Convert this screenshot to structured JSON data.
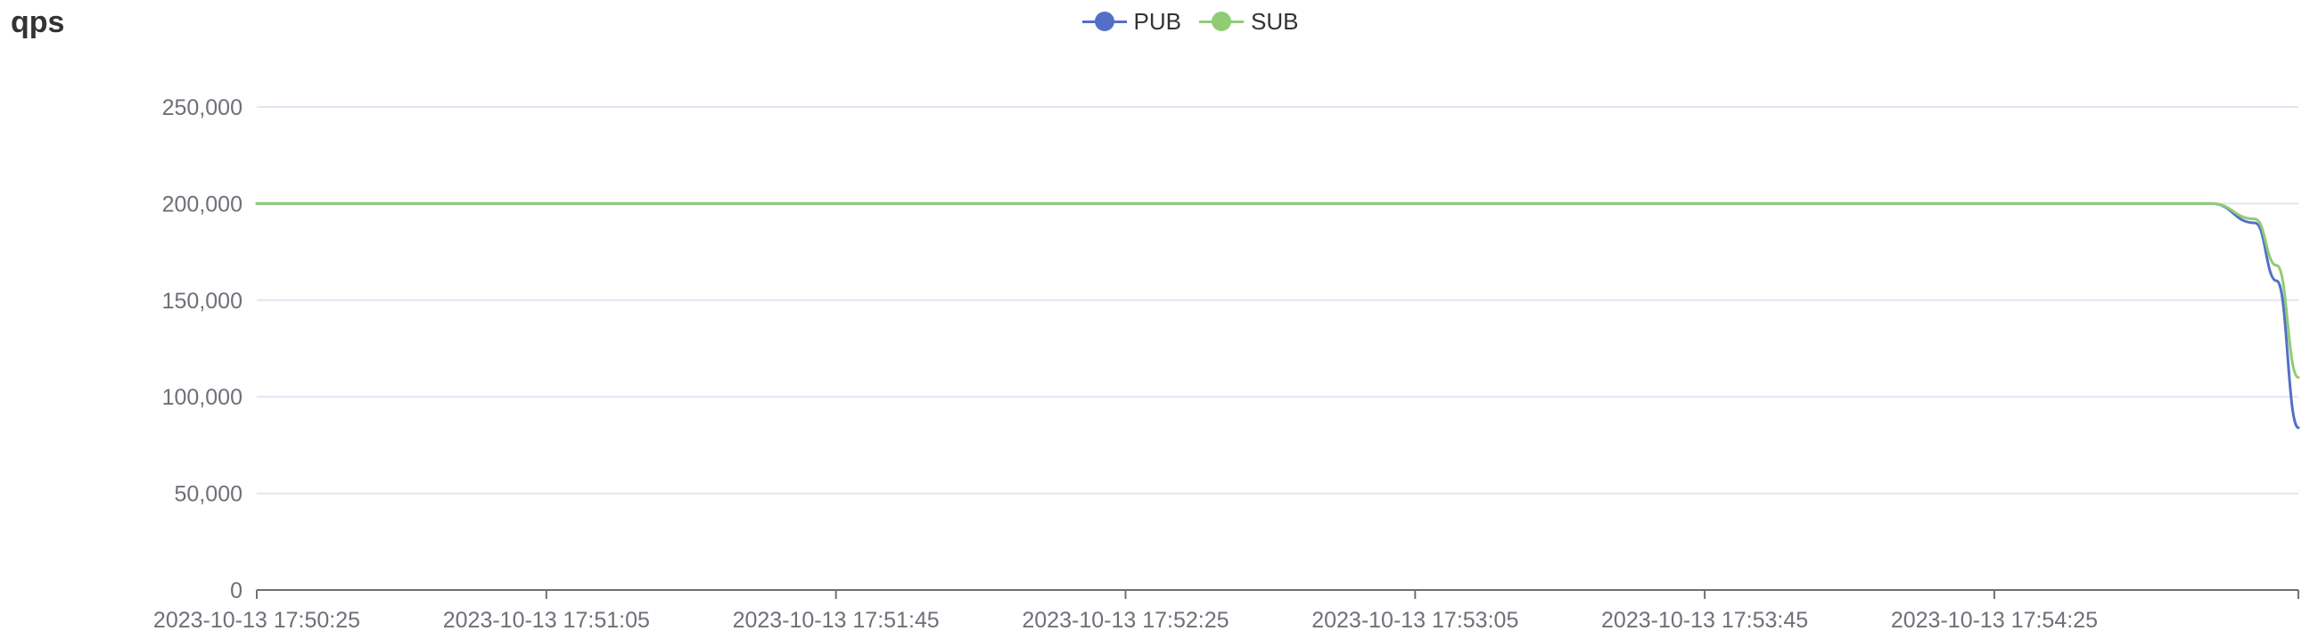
{
  "chart_data": {
    "type": "line",
    "title": "qps",
    "xlabel": "",
    "ylabel": "",
    "ylim": [
      0,
      250000
    ],
    "yticks": [
      0,
      50000,
      100000,
      150000,
      200000,
      250000
    ],
    "ytick_labels": [
      "0",
      "50,000",
      "100,000",
      "150,000",
      "200,000",
      "250,000"
    ],
    "xlim": [
      "2023-10-13 17:50:25",
      "2023-10-13 17:55:07"
    ],
    "xtick_labels": [
      "2023-10-13 17:50:25",
      "2023-10-13 17:51:05",
      "2023-10-13 17:51:45",
      "2023-10-13 17:52:25",
      "2023-10-13 17:53:05",
      "2023-10-13 17:53:45",
      "2023-10-13 17:54:25"
    ],
    "grid": true,
    "legend_position": "top-center",
    "series": [
      {
        "name": "PUB",
        "color": "#5470c6",
        "points": [
          [
            "2023-10-13 17:50:25",
            200000
          ],
          [
            "2023-10-13 17:51:05",
            200000
          ],
          [
            "2023-10-13 17:51:45",
            200000
          ],
          [
            "2023-10-13 17:52:25",
            200000
          ],
          [
            "2023-10-13 17:53:05",
            200000
          ],
          [
            "2023-10-13 17:53:45",
            200000
          ],
          [
            "2023-10-13 17:54:25",
            200000
          ],
          [
            "2023-10-13 17:54:55",
            200000
          ],
          [
            "2023-10-13 17:55:01",
            190000
          ],
          [
            "2023-10-13 17:55:04",
            160000
          ],
          [
            "2023-10-13 17:55:07",
            84000
          ]
        ]
      },
      {
        "name": "SUB",
        "color": "#91cc75",
        "points": [
          [
            "2023-10-13 17:50:25",
            200000
          ],
          [
            "2023-10-13 17:51:05",
            200000
          ],
          [
            "2023-10-13 17:51:45",
            200000
          ],
          [
            "2023-10-13 17:52:25",
            200000
          ],
          [
            "2023-10-13 17:53:05",
            200000
          ],
          [
            "2023-10-13 17:53:45",
            200000
          ],
          [
            "2023-10-13 17:54:25",
            200000
          ],
          [
            "2023-10-13 17:54:55",
            200000
          ],
          [
            "2023-10-13 17:55:01",
            192000
          ],
          [
            "2023-10-13 17:55:04",
            168000
          ],
          [
            "2023-10-13 17:55:07",
            110000
          ]
        ]
      }
    ]
  }
}
